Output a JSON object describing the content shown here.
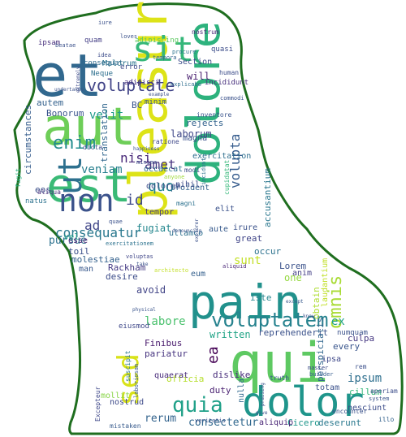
{
  "outline_color": "#1f6e1f",
  "words": [
    {
      "text": "pleasure",
      "color": "#dde318"
    },
    {
      "text": "pain",
      "color": "#21918c"
    },
    {
      "text": "qui",
      "color": "#5ec962"
    },
    {
      "text": "et",
      "color": "#31688e"
    },
    {
      "text": "aut",
      "color": "#6ece58"
    },
    {
      "text": "est",
      "color": "#3aba76"
    },
    {
      "text": "dolor",
      "color": "#1f958b"
    },
    {
      "text": "dolore",
      "color": "#2db27d"
    },
    {
      "text": "sit",
      "color": "#35b779"
    },
    {
      "text": "ut",
      "color": "#2d708e"
    },
    {
      "text": "non",
      "color": "#3b528b"
    },
    {
      "text": "sed",
      "color": "#d8e219"
    },
    {
      "text": "voluptatem",
      "color": "#26828e"
    },
    {
      "text": "quia",
      "color": "#1fa088"
    },
    {
      "text": "enim",
      "color": "#228c8d"
    },
    {
      "text": "voluptate",
      "color": "#414487"
    },
    {
      "text": "consequatur",
      "color": "#2a788e"
    },
    {
      "text": "omnis",
      "color": "#a8db34"
    },
    {
      "text": "id",
      "color": "#3e4989"
    },
    {
      "text": "amet",
      "color": "#46327e"
    },
    {
      "text": "nisi",
      "color": "#482878"
    },
    {
      "text": "quo",
      "color": "#25848e"
    },
    {
      "text": "velit",
      "color": "#1e9b8a"
    },
    {
      "text": "veniam",
      "color": "#277f8e"
    },
    {
      "text": "ad",
      "color": "#404688"
    },
    {
      "text": "volupta",
      "color": "#365c8d"
    },
    {
      "text": "ex",
      "color": "#1fa188"
    },
    {
      "text": "ea",
      "color": "#440154"
    },
    {
      "text": "sunt",
      "color": "#c2df23"
    },
    {
      "text": "labore",
      "color": "#4ac16d"
    },
    {
      "text": "ipsum",
      "color": "#2e6f8e"
    },
    {
      "text": "consectetur",
      "color": "#31688e"
    },
    {
      "text": "rerum",
      "color": "#33638d"
    },
    {
      "text": "laborum",
      "color": "#3f4788"
    },
    {
      "text": "pursue",
      "color": "#2c718e"
    },
    {
      "text": "Rackham",
      "color": "#443983"
    },
    {
      "text": "fugiat",
      "color": "#24878e"
    },
    {
      "text": "avoid",
      "color": "#414487"
    },
    {
      "text": "written",
      "color": "#20a486"
    },
    {
      "text": "reprehenderit",
      "color": "#3b528b"
    },
    {
      "text": "dislike",
      "color": "#472c7a"
    },
    {
      "text": "duty",
      "color": "#481f70"
    },
    {
      "text": "nostrud",
      "color": "#3e4a89"
    },
    {
      "text": "deserunt",
      "color": "#2a788e"
    },
    {
      "text": "Cicero",
      "color": "#1f968b"
    },
    {
      "text": "aliquip",
      "color": "#482475"
    },
    {
      "text": "cillum",
      "color": "#35b779"
    },
    {
      "text": "nulla",
      "color": "#31688e"
    },
    {
      "text": "culpa",
      "color": "#453781"
    },
    {
      "text": "every",
      "color": "#39558c"
    },
    {
      "text": "Lorem",
      "color": "#3b528b"
    },
    {
      "text": "great",
      "color": "#404588"
    },
    {
      "text": "anim",
      "color": "#433e85"
    },
    {
      "text": "one",
      "color": "#95d840"
    },
    {
      "text": "iste",
      "color": "#25858e"
    },
    {
      "text": "Finibus",
      "color": "#481a6c"
    },
    {
      "text": "pariatur",
      "color": "#46337f"
    },
    {
      "text": "officia",
      "color": "#b5de2b"
    },
    {
      "text": "quaerat",
      "color": "#472a7a"
    },
    {
      "text": "mollit",
      "color": "#89d548"
    },
    {
      "text": "esse",
      "color": "#482374"
    },
    {
      "text": "molestiae",
      "color": "#34618d"
    },
    {
      "text": "man",
      "color": "#38588c"
    },
    {
      "text": "desire",
      "color": "#3d4d8a"
    },
    {
      "text": "toil",
      "color": "#3c508b"
    },
    {
      "text": "vel",
      "color": "#1e9c89"
    },
    {
      "text": "eos",
      "color": "#3c4f8a"
    },
    {
      "text": "natus",
      "color": "#2c728e"
    },
    {
      "text": "circumstances",
      "color": "#365d8d"
    },
    {
      "text": "autem",
      "color": "#34618d"
    },
    {
      "text": "Bonorum",
      "color": "#3a548c"
    },
    {
      "text": "translation",
      "color": "#31678e"
    },
    {
      "text": "exercitation",
      "color": "#2e6e8e"
    },
    {
      "text": "Section",
      "color": "#3d4e8a"
    },
    {
      "text": "Malorum",
      "color": "#2b748e"
    },
    {
      "text": "incididunt",
      "color": "#472f7d"
    },
    {
      "text": "rejects",
      "color": "#33628d"
    },
    {
      "text": "magna",
      "color": "#3b518b"
    },
    {
      "text": "proident",
      "color": "#33638d"
    },
    {
      "text": "dolorem",
      "color": "#3e4a89"
    },
    {
      "text": "occaecat",
      "color": "#2c718e"
    },
    {
      "text": "nihil",
      "color": "#3d4d8a"
    },
    {
      "text": "ullamco",
      "color": "#2d708e"
    },
    {
      "text": "irure",
      "color": "#3b528b"
    },
    {
      "text": "elit",
      "color": "#3b528b"
    },
    {
      "text": "aute",
      "color": "#375a8c"
    },
    {
      "text": "tempor",
      "color": "#453882"
    },
    {
      "text": "accusantium",
      "color": "#2a778e"
    },
    {
      "text": "obtain",
      "color": "#addc30"
    },
    {
      "text": "occur",
      "color": "#2c728e"
    },
    {
      "text": "eum",
      "color": "#35608d"
    },
    {
      "text": "laudantium",
      "color": "#c0df25"
    },
    {
      "text": "numquam",
      "color": "#3b528b"
    },
    {
      "text": "perspiciatis",
      "color": "#31678e"
    },
    {
      "text": "ipsa",
      "color": "#3f4889"
    },
    {
      "text": "totam",
      "color": "#3b518b"
    },
    {
      "text": "nesciunt",
      "color": "#3d4d8a"
    },
    {
      "text": "quam",
      "color": "#433e85"
    },
    {
      "text": "ipsam",
      "color": "#472f7d"
    },
    {
      "text": "consequat",
      "color": "#2f6c8e"
    },
    {
      "text": "error",
      "color": "#3e4a89"
    },
    {
      "text": "Neque",
      "color": "#2e6f8e"
    },
    {
      "text": "quasi",
      "color": "#3d4e8a"
    },
    {
      "text": "human",
      "color": "#3d4d8a"
    },
    {
      "text": "will",
      "color": "#481e6f"
    },
    {
      "text": "BC",
      "color": "#3a548c"
    },
    {
      "text": "minim",
      "color": "#3b528b"
    },
    {
      "text": "adipisci",
      "color": "#46307e"
    },
    {
      "text": "adipiscing",
      "color": "#5ec962"
    },
    {
      "text": "nostrum",
      "color": "#482878"
    },
    {
      "text": "explicabo",
      "color": "#2e6e8e"
    },
    {
      "text": "modi",
      "color": "#3e4a89"
    },
    {
      "text": "magni",
      "color": "#2c718e"
    },
    {
      "text": "ratione",
      "color": "#3f4889"
    },
    {
      "text": "fugit",
      "color": "#29af7f"
    },
    {
      "text": "aliqua",
      "color": "#472e7c"
    },
    {
      "text": "exercitationem",
      "color": "#2c728e"
    },
    {
      "text": "voluptas",
      "color": "#404688"
    },
    {
      "text": "Excepteur",
      "color": "#3f4889"
    },
    {
      "text": "mistaken",
      "color": "#375a8c"
    },
    {
      "text": "laboriosam",
      "color": "#38598c"
    },
    {
      "text": "suscipit",
      "color": "#2a778e"
    },
    {
      "text": "eiusmod",
      "color": "#3f4889"
    },
    {
      "text": "aperiam",
      "color": "#3d4e8a"
    },
    {
      "text": "encounter",
      "color": "#3b528b"
    },
    {
      "text": "system",
      "color": "#3a548c"
    },
    {
      "text": "illo",
      "color": "#33628d"
    },
    {
      "text": "truth",
      "color": "#39568c"
    },
    {
      "text": "rem",
      "color": "#3c508b"
    },
    {
      "text": "commodi",
      "color": "#3b528b"
    },
    {
      "text": "inventore",
      "color": "#3a548c"
    },
    {
      "text": "cupidatat",
      "color": "#35b779"
    },
    {
      "text": "dicta",
      "color": "#3d4d8a"
    },
    {
      "text": "aliquid",
      "color": "#482475"
    },
    {
      "text": "master",
      "color": "#3e4a89"
    },
    {
      "text": "builder",
      "color": "#365c8d"
    },
    {
      "text": "denouncing",
      "color": "#3b528b"
    },
    {
      "text": "happiness",
      "color": "#3a548c"
    },
    {
      "text": "example",
      "color": "#3c508b"
    },
    {
      "text": "procure",
      "color": "#2c718e"
    },
    {
      "text": "loves",
      "color": "#3b528b"
    },
    {
      "text": "idea",
      "color": "#3d4d8a"
    },
    {
      "text": "tempora",
      "color": "#33628d"
    },
    {
      "text": "undertakes",
      "color": "#3b528b"
    },
    {
      "text": "beatae",
      "color": "#3b518b"
    },
    {
      "text": "extremely",
      "color": "#3e4a89"
    },
    {
      "text": "physical",
      "color": "#3a548c"
    },
    {
      "text": "except",
      "color": "#38598c"
    },
    {
      "text": "know",
      "color": "#3b528b"
    },
    {
      "text": "take",
      "color": "#3b528b"
    },
    {
      "text": "minima",
      "color": "#3d4d8a"
    },
    {
      "text": "anyone",
      "color": "#9fda3a"
    },
    {
      "text": "explorer",
      "color": "#3b528b"
    },
    {
      "text": "architecto",
      "color": "#c2df23"
    },
    {
      "text": "incidunt",
      "color": "#2d708e"
    },
    {
      "text": "iure",
      "color": "#3b528b"
    },
    {
      "text": "quae",
      "color": "#3b528b"
    },
    {
      "text": "veritatis",
      "color": "#3b528b"
    },
    {
      "text": "praising",
      "color": "#3b528b"
    },
    {
      "text": "give",
      "color": "#3b528b"
    }
  ]
}
